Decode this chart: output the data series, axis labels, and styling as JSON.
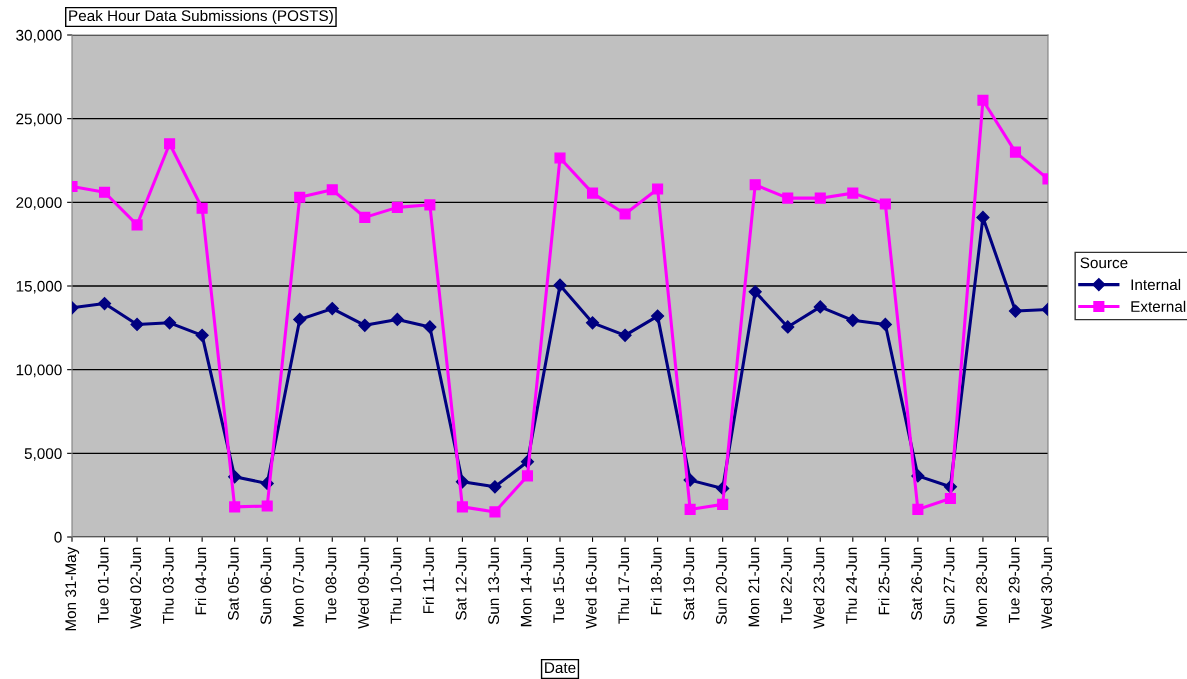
{
  "chart_data": {
    "type": "line",
    "title": "Peak Hour Data Submissions (POSTS)",
    "xlabel": "Date",
    "legend_title": "Source",
    "categories": [
      "Mon 31-May",
      "Tue 01-Jun",
      "Wed 02-Jun",
      "Thu 03-Jun",
      "Fri 04-Jun",
      "Sat 05-Jun",
      "Sun 06-Jun",
      "Mon 07-Jun",
      "Tue 08-Jun",
      "Wed 09-Jun",
      "Thu 10-Jun",
      "Fri 11-Jun",
      "Sat 12-Jun",
      "Sun 13-Jun",
      "Mon 14-Jun",
      "Tue 15-Jun",
      "Wed 16-Jun",
      "Thu 17-Jun",
      "Fri 18-Jun",
      "Sat 19-Jun",
      "Sun 20-Jun",
      "Mon 21-Jun",
      "Tue 22-Jun",
      "Wed 23-Jun",
      "Thu 24-Jun",
      "Fri 25-Jun",
      "Sat 26-Jun",
      "Sun 27-Jun",
      "Mon 28-Jun",
      "Tue 29-Jun",
      "Wed 30-Jun"
    ],
    "series": [
      {
        "name": "Internal",
        "color": "#000080",
        "marker": "diamond",
        "values": [
          13700,
          13950,
          12700,
          12800,
          12050,
          3600,
          3200,
          13000,
          13650,
          12650,
          13000,
          12550,
          3300,
          3000,
          4500,
          15050,
          12800,
          12050,
          13200,
          3400,
          2900,
          14650,
          12550,
          13750,
          12950,
          12700,
          3650,
          3000,
          19100,
          13500,
          13600
        ]
      },
      {
        "name": "External",
        "color": "#ff00ff",
        "marker": "square",
        "values": [
          20950,
          20600,
          18650,
          23500,
          19650,
          1800,
          1850,
          20300,
          20750,
          19100,
          19700,
          19850,
          1800,
          1500,
          3650,
          22650,
          20550,
          19300,
          20800,
          1650,
          1950,
          21050,
          20250,
          20250,
          20550,
          19900,
          1650,
          2300,
          26100,
          23000,
          21400
        ]
      }
    ],
    "ylim": [
      0,
      30000
    ],
    "yticks": [
      {
        "value": 0,
        "label": "0"
      },
      {
        "value": 5000,
        "label": "5,000"
      },
      {
        "value": 10000,
        "label": "10,000"
      },
      {
        "value": 15000,
        "label": "15,000"
      },
      {
        "value": 20000,
        "label": "20,000"
      },
      {
        "value": 25000,
        "label": "25,000"
      },
      {
        "value": 30000,
        "label": "30,000"
      }
    ],
    "grid": "y",
    "legend": "right",
    "line_style": "solid"
  }
}
